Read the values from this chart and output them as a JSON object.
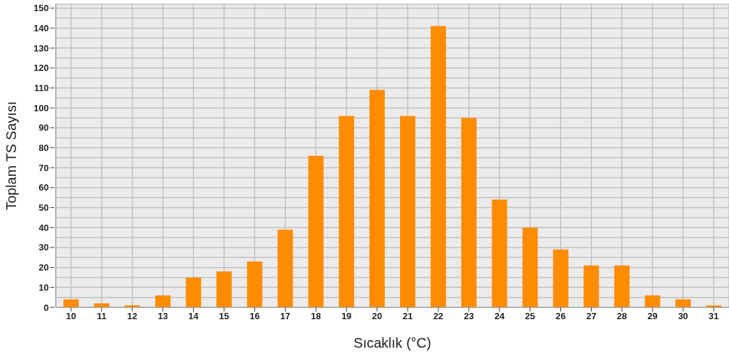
{
  "chart_data": {
    "type": "bar",
    "xlabel": "Sıcaklık (°C)",
    "ylabel": "Toplam TS Sayısı",
    "categories": [
      "10",
      "11",
      "12",
      "13",
      "14",
      "15",
      "16",
      "17",
      "18",
      "19",
      "20",
      "21",
      "22",
      "23",
      "24",
      "25",
      "26",
      "27",
      "28",
      "29",
      "30",
      "31"
    ],
    "values": [
      4,
      2,
      1,
      6,
      15,
      18,
      23,
      39,
      76,
      96,
      109,
      96,
      141,
      95,
      54,
      40,
      29,
      21,
      21,
      6,
      4,
      1
    ],
    "color": "#ff8c00",
    "ylim": [
      0,
      152
    ],
    "yticks": [
      0,
      {
        "value": 5,
        "label": null
      },
      10,
      {
        "value": 15,
        "label": null
      },
      20,
      {
        "value": 25,
        "label": null
      },
      30,
      {
        "value": 35,
        "label": null
      },
      40,
      {
        "value": 45,
        "label": null
      },
      50,
      {
        "value": 55,
        "label": null
      },
      60,
      {
        "value": 65,
        "label": null
      },
      70,
      {
        "value": 75,
        "label": null
      },
      80,
      {
        "value": 85,
        "label": null
      },
      90,
      {
        "value": 95,
        "label": null
      },
      100,
      {
        "value": 105,
        "label": null
      },
      110,
      {
        "value": 115,
        "label": null
      },
      120,
      {
        "value": 125,
        "label": null
      },
      130,
      {
        "value": 135,
        "label": null
      },
      140,
      {
        "value": 145,
        "label": null
      },
      150
    ],
    "grid": true
  }
}
